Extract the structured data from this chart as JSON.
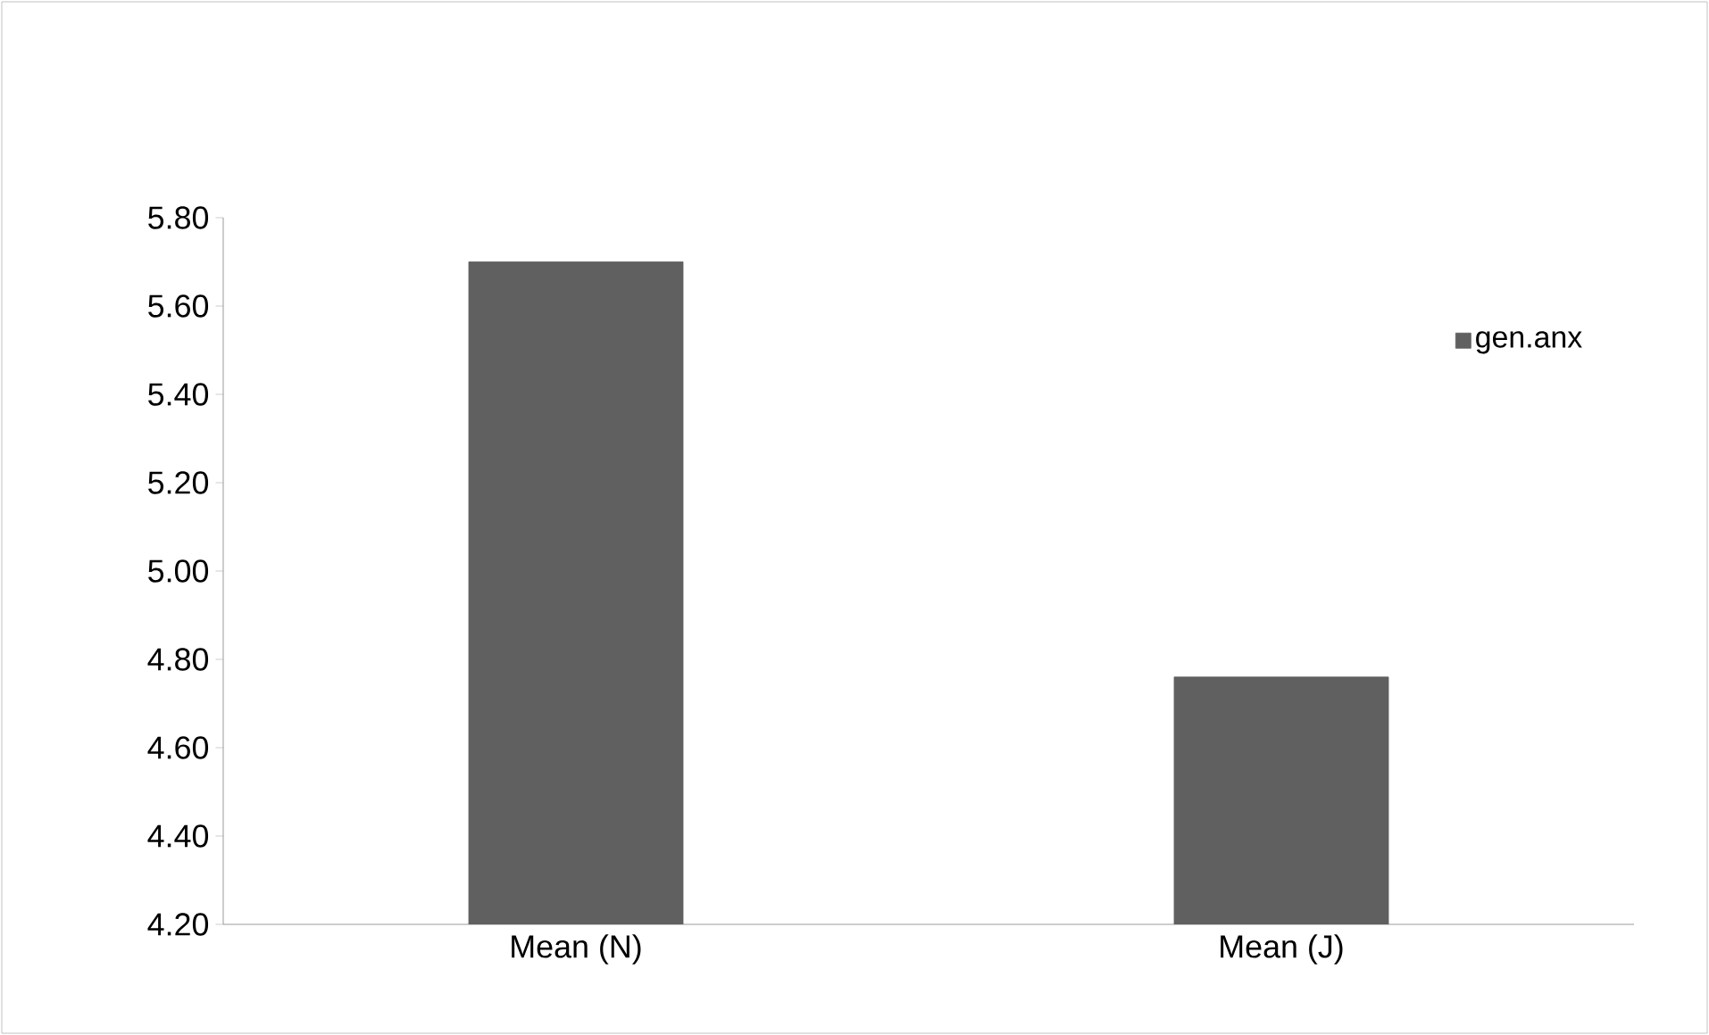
{
  "chart_data": {
    "type": "bar",
    "categories": [
      "Mean (N)",
      "Mean (J)"
    ],
    "series": [
      {
        "name": "gen.anx",
        "color": "#606060",
        "values": [
          5.7,
          4.76
        ]
      }
    ],
    "ylim": [
      4.2,
      5.8
    ],
    "yticks": [
      {
        "value": 4.2,
        "label": "4.20"
      },
      {
        "value": 4.4,
        "label": "4.40"
      },
      {
        "value": 4.6,
        "label": "4.60"
      },
      {
        "value": 4.8,
        "label": "4.80"
      },
      {
        "value": 5.0,
        "label": "5.00"
      },
      {
        "value": 5.2,
        "label": "5.20"
      },
      {
        "value": 5.4,
        "label": "5.40"
      },
      {
        "value": 5.6,
        "label": "5.60"
      },
      {
        "value": 5.8,
        "label": "5.80"
      }
    ],
    "grid": false,
    "legend": "top right"
  }
}
